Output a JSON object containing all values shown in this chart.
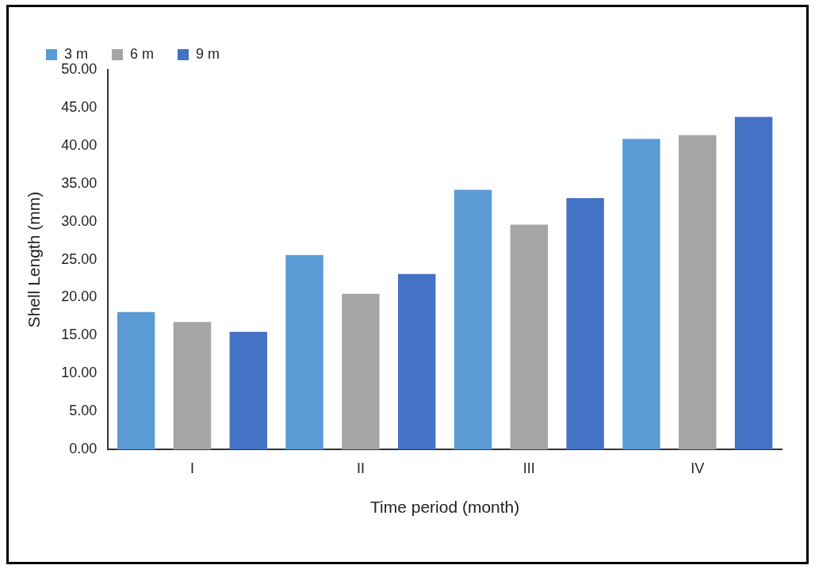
{
  "chart_data": {
    "type": "bar",
    "xlabel": "Time period (month)",
    "ylabel": "Shell Length (mm)",
    "categories": [
      "I",
      "II",
      "III",
      "IV"
    ],
    "series": [
      {
        "name": "3 m",
        "color": "#5b9bd5",
        "values": [
          18.1,
          25.6,
          34.2,
          40.9
        ]
      },
      {
        "name": "6 m",
        "color": "#a5a5a5",
        "values": [
          16.8,
          20.5,
          29.6,
          41.4
        ]
      },
      {
        "name": "9 m",
        "color": "#4472c4",
        "values": [
          15.5,
          23.1,
          33.1,
          43.8
        ]
      }
    ],
    "ylim": [
      0,
      50
    ],
    "yticks": [
      {
        "value": 0,
        "label": "0.00"
      },
      {
        "value": 5,
        "label": "5.00"
      },
      {
        "value": 10,
        "label": "10.00"
      },
      {
        "value": 15,
        "label": "15.00"
      },
      {
        "value": 20,
        "label": "20.00"
      },
      {
        "value": 25,
        "label": "25.00"
      },
      {
        "value": 30,
        "label": "30.00"
      },
      {
        "value": 35,
        "label": "35.00"
      },
      {
        "value": 40,
        "label": "40.00"
      },
      {
        "value": 45,
        "label": "45.00"
      },
      {
        "value": 50,
        "label": "50.00"
      }
    ],
    "grid": false,
    "legend": "top left"
  }
}
